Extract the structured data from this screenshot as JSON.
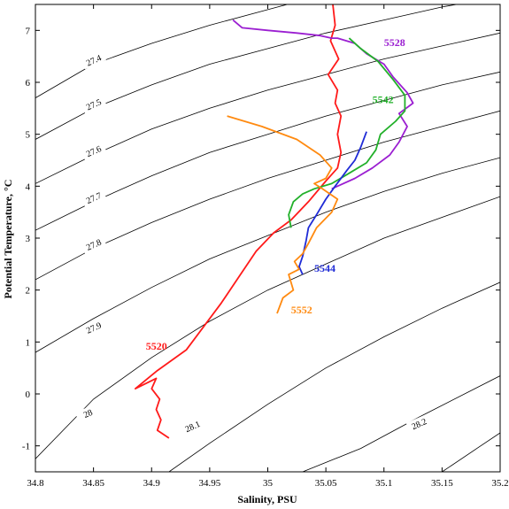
{
  "chart_data": {
    "type": "line",
    "title": "",
    "xlabel": "Salinity, PSU",
    "ylabel": "Potential Temperature, °C",
    "xlim": [
      34.8,
      35.2
    ],
    "ylim": [
      -1.5,
      7.5
    ],
    "grid": false,
    "legend": "labels placed next to each profile",
    "x_ticks": [
      "34.8",
      "34.85",
      "34.9",
      "34.95",
      "35",
      "35.05",
      "35.1",
      "35.15",
      "35.2"
    ],
    "y_ticks": [
      "-1",
      "0",
      "1",
      "2",
      "3",
      "4",
      "5",
      "6",
      "7"
    ],
    "density_contours": [
      {
        "label": "27.4",
        "label_at": [
          34.85,
          6.4
        ],
        "points": [
          [
            34.8,
            5.7
          ],
          [
            34.85,
            6.35
          ],
          [
            34.9,
            6.75
          ],
          [
            34.95,
            7.1
          ],
          [
            35.0,
            7.4
          ],
          [
            35.05,
            7.7
          ]
        ]
      },
      {
        "label": "27.5",
        "label_at": [
          34.85,
          5.55
        ],
        "points": [
          [
            34.8,
            4.9
          ],
          [
            34.85,
            5.5
          ],
          [
            34.9,
            5.95
          ],
          [
            34.95,
            6.35
          ],
          [
            35.0,
            6.65
          ],
          [
            35.05,
            6.95
          ],
          [
            35.1,
            7.2
          ],
          [
            35.15,
            7.45
          ],
          [
            35.2,
            7.65
          ]
        ]
      },
      {
        "label": "27.6",
        "label_at": [
          34.85,
          4.65
        ],
        "points": [
          [
            34.8,
            4.05
          ],
          [
            34.85,
            4.6
          ],
          [
            34.9,
            5.1
          ],
          [
            34.95,
            5.5
          ],
          [
            35.0,
            5.85
          ],
          [
            35.05,
            6.15
          ],
          [
            35.1,
            6.45
          ],
          [
            35.15,
            6.7
          ],
          [
            35.2,
            6.95
          ]
        ]
      },
      {
        "label": "27.7",
        "label_at": [
          34.85,
          3.75
        ],
        "points": [
          [
            34.8,
            3.15
          ],
          [
            34.85,
            3.7
          ],
          [
            34.9,
            4.2
          ],
          [
            34.95,
            4.65
          ],
          [
            35.0,
            5.0
          ],
          [
            35.05,
            5.35
          ],
          [
            35.1,
            5.65
          ],
          [
            35.15,
            5.95
          ],
          [
            35.2,
            6.2
          ]
        ]
      },
      {
        "label": "27.8",
        "label_at": [
          34.85,
          2.85
        ],
        "points": [
          [
            34.8,
            2.2
          ],
          [
            34.85,
            2.8
          ],
          [
            34.9,
            3.3
          ],
          [
            34.95,
            3.75
          ],
          [
            35.0,
            4.15
          ],
          [
            35.05,
            4.5
          ],
          [
            35.1,
            4.85
          ],
          [
            35.15,
            5.15
          ],
          [
            35.2,
            5.45
          ]
        ]
      },
      {
        "label": "27.9",
        "label_at": [
          34.85,
          1.25
        ],
        "points": [
          [
            34.8,
            0.8
          ],
          [
            34.85,
            1.45
          ],
          [
            34.9,
            2.05
          ],
          [
            34.95,
            2.6
          ],
          [
            35.0,
            3.05
          ],
          [
            35.05,
            3.5
          ],
          [
            35.1,
            3.9
          ],
          [
            35.15,
            4.25
          ],
          [
            35.2,
            4.55
          ]
        ]
      },
      {
        "label": "28",
        "label_at": [
          34.845,
          -0.4
        ],
        "points": [
          [
            34.8,
            -1.25
          ],
          [
            34.85,
            -0.1
          ],
          [
            34.9,
            0.7
          ],
          [
            34.95,
            1.4
          ],
          [
            35.0,
            2.0
          ],
          [
            35.05,
            2.5
          ],
          [
            35.1,
            3.0
          ],
          [
            35.15,
            3.4
          ],
          [
            35.2,
            3.8
          ]
        ]
      },
      {
        "label": "28.1",
        "label_at": [
          34.935,
          -0.65
        ],
        "points": [
          [
            34.915,
            -1.5
          ],
          [
            34.95,
            -0.95
          ],
          [
            35.0,
            -0.2
          ],
          [
            35.05,
            0.5
          ],
          [
            35.1,
            1.1
          ],
          [
            35.15,
            1.65
          ],
          [
            35.2,
            2.15
          ]
        ]
      },
      {
        "label": "28.2",
        "label_at": [
          35.13,
          -0.6
        ],
        "points": [
          [
            35.03,
            -1.5
          ],
          [
            35.08,
            -1.05
          ],
          [
            35.13,
            -0.45
          ],
          [
            35.2,
            0.35
          ]
        ]
      },
      {
        "label": "",
        "label_at": null,
        "points": [
          [
            35.15,
            -1.5
          ],
          [
            35.18,
            -1.05
          ],
          [
            35.2,
            -0.75
          ]
        ]
      }
    ],
    "series": [
      {
        "name": "5520",
        "color": "#ff1a1a",
        "label_at": [
          34.895,
          0.85
        ],
        "points": [
          [
            34.915,
            -0.85
          ],
          [
            34.905,
            -0.7
          ],
          [
            34.908,
            -0.5
          ],
          [
            34.904,
            -0.3
          ],
          [
            34.907,
            -0.1
          ],
          [
            34.9,
            0.1
          ],
          [
            34.904,
            0.3
          ],
          [
            34.886,
            0.1
          ],
          [
            34.905,
            0.45
          ],
          [
            34.93,
            0.85
          ],
          [
            34.945,
            1.3
          ],
          [
            34.96,
            1.75
          ],
          [
            34.975,
            2.25
          ],
          [
            34.99,
            2.75
          ],
          [
            35.005,
            3.1
          ],
          [
            35.02,
            3.35
          ],
          [
            35.035,
            3.7
          ],
          [
            35.05,
            4.1
          ],
          [
            35.06,
            4.35
          ],
          [
            35.063,
            4.65
          ],
          [
            35.06,
            5.0
          ],
          [
            35.063,
            5.35
          ],
          [
            35.058,
            5.6
          ],
          [
            35.06,
            5.85
          ],
          [
            35.052,
            6.15
          ],
          [
            35.061,
            6.45
          ],
          [
            35.054,
            6.8
          ],
          [
            35.058,
            7.1
          ],
          [
            35.056,
            7.5
          ]
        ]
      },
      {
        "name": "5528",
        "color": "#9b1fd1",
        "label_at": [
          35.1,
          6.7
        ],
        "points": [
          [
            34.97,
            7.2
          ],
          [
            34.978,
            7.05
          ],
          [
            35.0,
            7.0
          ],
          [
            35.025,
            6.95
          ],
          [
            35.045,
            6.9
          ],
          [
            35.055,
            6.85
          ],
          [
            35.06,
            6.85
          ],
          [
            35.075,
            6.75
          ],
          [
            35.085,
            6.55
          ],
          [
            35.1,
            6.35
          ],
          [
            35.108,
            6.1
          ],
          [
            35.12,
            5.8
          ],
          [
            35.125,
            5.6
          ],
          [
            35.113,
            5.4
          ],
          [
            35.12,
            5.15
          ],
          [
            35.113,
            4.85
          ],
          [
            35.105,
            4.6
          ],
          [
            35.09,
            4.35
          ],
          [
            35.075,
            4.15
          ],
          [
            35.06,
            4.0
          ],
          [
            35.055,
            3.95
          ]
        ]
      },
      {
        "name": "5542",
        "color": "#22b02a",
        "label_at": [
          35.09,
          5.6
        ],
        "points": [
          [
            35.07,
            6.85
          ],
          [
            35.08,
            6.65
          ],
          [
            35.095,
            6.4
          ],
          [
            35.108,
            6.05
          ],
          [
            35.118,
            5.75
          ],
          [
            35.118,
            5.45
          ],
          [
            35.11,
            5.25
          ],
          [
            35.097,
            5.0
          ],
          [
            35.093,
            4.7
          ],
          [
            35.085,
            4.45
          ],
          [
            35.07,
            4.25
          ],
          [
            35.055,
            4.05
          ],
          [
            35.04,
            3.95
          ],
          [
            35.03,
            3.85
          ],
          [
            35.022,
            3.7
          ],
          [
            35.018,
            3.45
          ],
          [
            35.02,
            3.2
          ]
        ]
      },
      {
        "name": "5544",
        "color": "#1f2bd6",
        "label_at": [
          35.04,
          2.35
        ],
        "points": [
          [
            35.085,
            5.05
          ],
          [
            35.08,
            4.75
          ],
          [
            35.075,
            4.5
          ],
          [
            35.068,
            4.3
          ],
          [
            35.058,
            4.0
          ],
          [
            35.05,
            3.75
          ],
          [
            35.042,
            3.45
          ],
          [
            35.035,
            3.2
          ],
          [
            35.033,
            2.95
          ],
          [
            35.03,
            2.65
          ],
          [
            35.027,
            2.45
          ],
          [
            35.03,
            2.3
          ]
        ]
      },
      {
        "name": "5552",
        "color": "#ff8a10",
        "label_at": [
          35.02,
          1.55
        ],
        "points": [
          [
            34.965,
            5.35
          ],
          [
            34.995,
            5.15
          ],
          [
            35.025,
            4.9
          ],
          [
            35.045,
            4.6
          ],
          [
            35.055,
            4.35
          ],
          [
            35.05,
            4.15
          ],
          [
            35.04,
            4.05
          ],
          [
            35.047,
            3.95
          ],
          [
            35.06,
            3.75
          ],
          [
            35.055,
            3.5
          ],
          [
            35.042,
            3.2
          ],
          [
            35.035,
            2.9
          ],
          [
            35.03,
            2.7
          ],
          [
            35.023,
            2.55
          ],
          [
            35.027,
            2.4
          ],
          [
            35.018,
            2.3
          ],
          [
            35.022,
            2.0
          ],
          [
            35.013,
            1.85
          ],
          [
            35.008,
            1.55
          ]
        ]
      }
    ]
  }
}
